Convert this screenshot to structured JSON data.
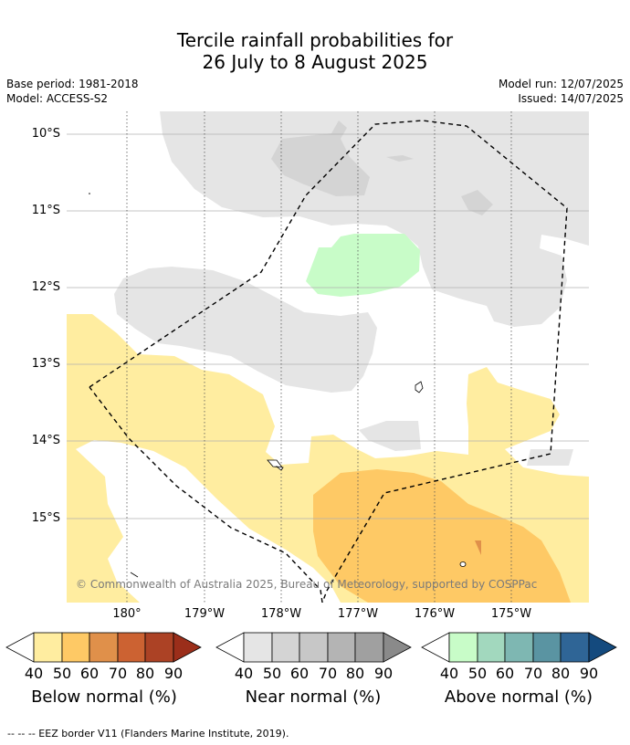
{
  "title_line1": "Tercile rainfall probabilities for",
  "title_line2": "26 July to 8 August 2025",
  "meta": {
    "base_period": "Base period: 1981-2018",
    "model": "Model: ACCESS-S2",
    "model_run": "Model run: 12/07/2025",
    "issued": "Issued: 14/07/2025"
  },
  "map": {
    "lat_labels": [
      "10°S",
      "11°S",
      "12°S",
      "13°S",
      "14°S",
      "15°S"
    ],
    "lon_labels": [
      "180°",
      "179°W",
      "178°W",
      "177°W",
      "176°W",
      "175°W"
    ],
    "copyright": "© Commonwealth of Australia 2025, Bureau of Meteorology, supported by COSPPac"
  },
  "colorbars": [
    {
      "title": "Below normal (%)",
      "ticks": [
        "40",
        "50",
        "60",
        "70",
        "80",
        "90"
      ],
      "colors": [
        "#ffeda0",
        "#fec965",
        "#e0904a",
        "#cc6232",
        "#ac4225",
        "#9b2e1a"
      ]
    },
    {
      "title": "Near normal (%)",
      "ticks": [
        "40",
        "50",
        "60",
        "70",
        "80",
        "90"
      ],
      "colors": [
        "#e5e5e5",
        "#d4d4d4",
        "#c7c7c7",
        "#b4b4b4",
        "#a0a0a0",
        "#8a8a8a"
      ]
    },
    {
      "title": "Above normal (%)",
      "ticks": [
        "40",
        "50",
        "60",
        "70",
        "80",
        "90"
      ],
      "colors": [
        "#c8fcc8",
        "#a2d8be",
        "#7eb7b2",
        "#5a94a2",
        "#2f6596",
        "#144a7e"
      ]
    }
  ],
  "footnote": "-- -- -- EEZ border V11 (Flanders Marine Institute, 2019)."
}
